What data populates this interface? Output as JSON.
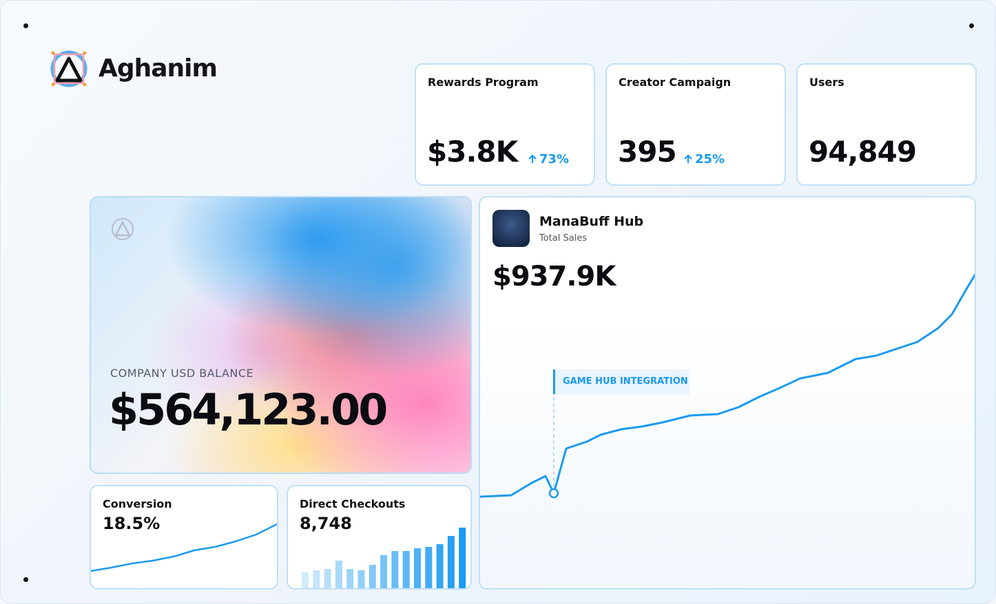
{
  "brand": "Aghanim",
  "stats": [
    {
      "label": "Rewards Program",
      "value": "$3.8K",
      "change": "73%"
    },
    {
      "label": "Creator Campaign",
      "value": "395",
      "change": "25%"
    },
    {
      "label": "Users",
      "value": "94,849"
    }
  ],
  "balance": {
    "label": "COMPANY USD BALANCE",
    "value": "$564,123.00"
  },
  "hub": {
    "name": "ManaBuff Hub",
    "subtitle": "Total Sales",
    "value": "$937.9K"
  },
  "conversion": {
    "label": "Conversion",
    "value": "18.5%"
  },
  "checkouts": {
    "label": "Direct Checkouts",
    "value": "8,748"
  },
  "chart_data": [
    {
      "type": "line",
      "annotation": "GAME HUB INTEGRATION",
      "color": "#1a9af0",
      "x": [
        0,
        45,
        75,
        95,
        107,
        125,
        155,
        175,
        205,
        235,
        265,
        305,
        345,
        375,
        405,
        435,
        465,
        505,
        545,
        575,
        605,
        635,
        665,
        685,
        705,
        720
      ],
      "values": [
        135,
        137,
        155,
        165,
        140,
        205,
        215,
        225,
        233,
        237,
        243,
        253,
        255,
        265,
        280,
        293,
        307,
        315,
        335,
        340,
        350,
        360,
        380,
        400,
        435,
        460
      ],
      "xlim": [
        0,
        720
      ],
      "ylim": [
        0,
        570
      ]
    },
    {
      "type": "line",
      "color": "#1a9af0",
      "x": [
        0,
        30,
        60,
        90,
        120,
        150,
        180,
        210,
        240,
        270
      ],
      "values": [
        27,
        32,
        38,
        42,
        48,
        57,
        62,
        70,
        80,
        95
      ],
      "xlim": [
        0,
        272
      ],
      "ylim": [
        0,
        150
      ]
    },
    {
      "type": "bar",
      "color": "#1a9af0",
      "values": [
        25,
        28,
        30,
        42,
        30,
        28,
        36,
        50,
        56,
        56,
        60,
        62,
        66,
        78,
        90
      ],
      "ylim": [
        0,
        150
      ]
    }
  ]
}
